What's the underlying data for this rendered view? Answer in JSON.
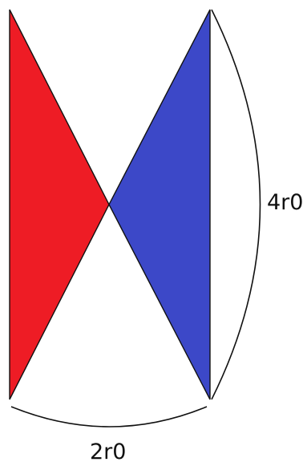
{
  "labels": {
    "height": "4r0",
    "width": "2r0"
  },
  "colors": {
    "left_triangle": "#ee1c25",
    "right_triangle": "#3c48c8",
    "stroke": "#111111"
  }
}
